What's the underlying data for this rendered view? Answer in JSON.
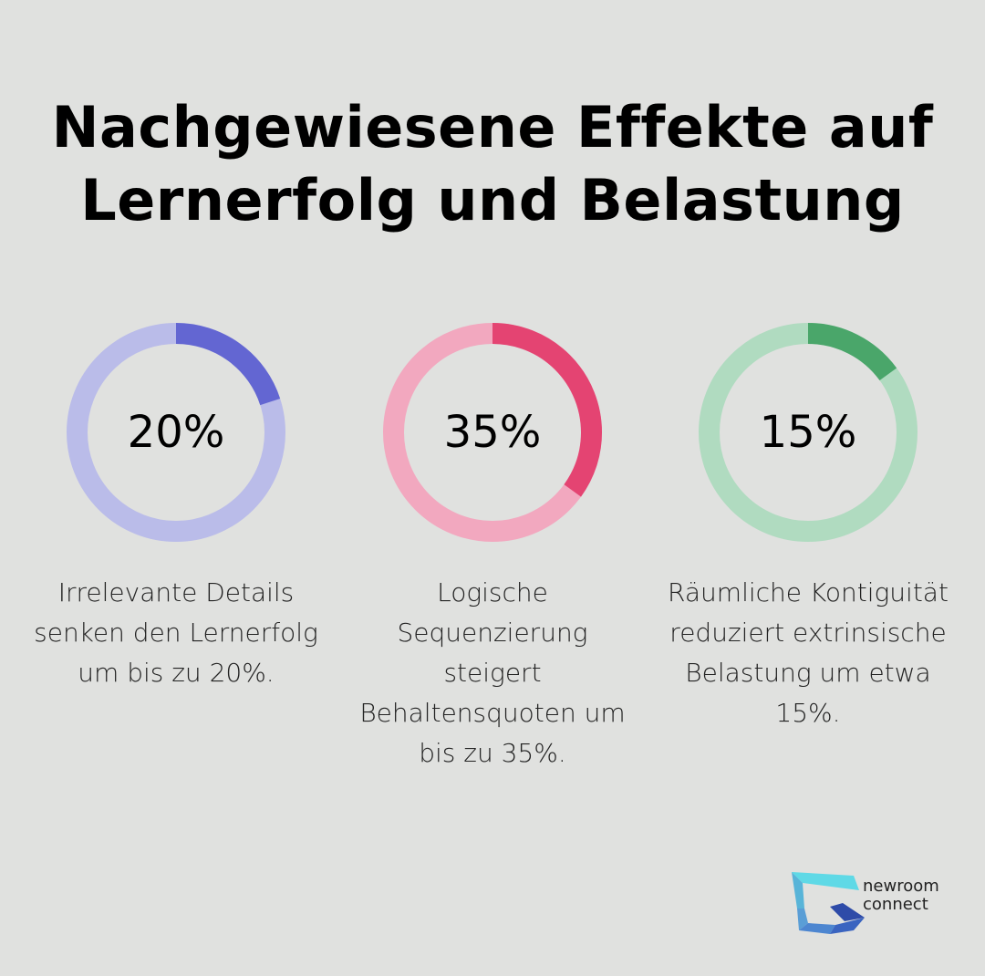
{
  "title_line1": "Nachgewiesene Effekte auf",
  "title_line2": "Lernerfolg und Belastung",
  "chart_data": [
    {
      "type": "pie",
      "style": "donut",
      "value": 20,
      "label": "20%",
      "description": "Irrelevante Details senken den Lernerfolg um bis zu 20%.",
      "color": "#6366d2",
      "track_color": "#babce9"
    },
    {
      "type": "pie",
      "style": "donut",
      "value": 35,
      "label": "35%",
      "description": "Logische Sequenzierung steigert Behaltensquoten um bis zu 35%.",
      "color": "#e44472",
      "track_color": "#f2a8bf"
    },
    {
      "type": "pie",
      "style": "donut",
      "value": 15,
      "label": "15%",
      "description": "Räumliche Kontiguität reduziert extrinsische Belastung um etwa 15%.",
      "color": "#4aa66a",
      "track_color": "#b0dbc0"
    }
  ],
  "logo": {
    "line1": "newroom",
    "line2": "connect"
  }
}
